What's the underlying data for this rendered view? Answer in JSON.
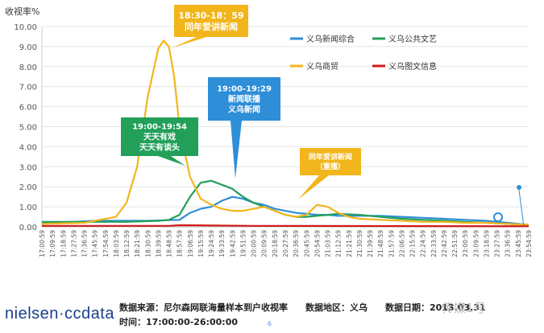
{
  "chart_data": {
    "type": "line",
    "ylabel": "收视率%",
    "ylim": [
      0,
      10
    ],
    "yticks": [
      "0.00",
      "1.00",
      "2.00",
      "3.00",
      "4.00",
      "5.00",
      "6.00",
      "7.00",
      "8.00",
      "9.00",
      "10.00"
    ],
    "x_tick_labels": [
      "17:00:59",
      "17:09:59",
      "17:18:59",
      "17:27:59",
      "17:36:59",
      "17:45:59",
      "17:54:59",
      "18:03:59",
      "18:12:59",
      "18:21:59",
      "18:30:59",
      "18:39:59",
      "18:48:59",
      "18:57:59",
      "19:06:59",
      "19:15:59",
      "19:24:59",
      "19:33:59",
      "19:42:59",
      "19:51:59",
      "20:00:59",
      "20:09:59",
      "20:18:59",
      "20:27:59",
      "20:36:59",
      "20:45:59",
      "20:54:59",
      "21:03:59",
      "21:12:59",
      "21:21:59",
      "21:30:59",
      "21:39:59",
      "21:48:59",
      "21:57:59",
      "22:06:59",
      "22:15:59",
      "22:24:59",
      "22:33:59",
      "22:42:59",
      "22:51:59",
      "23:00:59",
      "23:09:59",
      "23:18:59",
      "23:27:59",
      "23:36:59",
      "23:45:59",
      "23:54:59"
    ],
    "legend_placement": "top-right",
    "series": [
      {
        "name": "义乌新闻综合",
        "color": "#2e8ed8",
        "x": [
          0,
          3,
          5,
          8,
          10,
          13,
          14,
          15,
          16,
          17,
          18,
          19,
          20,
          21,
          22,
          23,
          24,
          25,
          26,
          27,
          28,
          30,
          32,
          34,
          36,
          38,
          40,
          42,
          43,
          44,
          45,
          46
        ],
        "values": [
          0.2,
          0.25,
          0.3,
          0.3,
          0.3,
          0.35,
          0.7,
          0.9,
          1.0,
          1.3,
          1.5,
          1.4,
          1.2,
          1.1,
          0.9,
          0.8,
          0.7,
          0.65,
          0.6,
          0.6,
          0.55,
          0.55,
          0.55,
          0.5,
          0.45,
          0.4,
          0.35,
          0.3,
          0.25,
          0.2,
          0.15,
          0.1
        ]
      },
      {
        "name": "义乌公共文艺",
        "color": "#22a05a",
        "x": [
          0,
          4,
          8,
          11,
          12,
          13,
          14,
          15,
          16,
          17,
          18,
          19,
          20,
          21,
          22,
          23,
          24,
          25,
          26,
          27,
          28,
          30,
          32,
          34,
          36,
          38,
          40,
          42,
          44,
          46
        ],
        "values": [
          0.25,
          0.25,
          0.25,
          0.3,
          0.35,
          0.6,
          1.5,
          2.2,
          2.3,
          2.1,
          1.9,
          1.5,
          1.2,
          1.0,
          0.8,
          0.6,
          0.5,
          0.5,
          0.55,
          0.6,
          0.65,
          0.6,
          0.5,
          0.4,
          0.35,
          0.3,
          0.25,
          0.2,
          0.15,
          0.1
        ]
      },
      {
        "name": "义乌商贸",
        "color": "#f2b51c",
        "x": [
          0,
          4,
          7,
          8,
          9,
          10,
          11,
          11.5,
          12,
          12.5,
          13,
          14,
          15,
          16,
          17,
          18,
          19,
          20,
          21,
          22,
          23,
          24,
          25,
          26,
          27,
          28,
          29,
          30,
          32,
          34,
          36,
          38,
          40,
          42,
          44,
          46
        ],
        "values": [
          0.15,
          0.2,
          0.5,
          1.2,
          3.0,
          6.5,
          8.9,
          9.3,
          9.0,
          7.5,
          5.0,
          2.5,
          1.4,
          1.1,
          0.9,
          0.8,
          0.8,
          0.9,
          1.0,
          0.8,
          0.6,
          0.5,
          0.6,
          1.1,
          1.0,
          0.7,
          0.5,
          0.4,
          0.35,
          0.3,
          0.25,
          0.25,
          0.2,
          0.2,
          0.15,
          0.1
        ]
      },
      {
        "name": "义乌图文信息",
        "color": "#d11a1a",
        "x": [
          0,
          12,
          13,
          20,
          30,
          46
        ],
        "values": [
          0.05,
          0.05,
          0.08,
          0.05,
          0.04,
          0.03
        ]
      }
    ],
    "annotations": [
      {
        "title": "18:30-18：59",
        "text": "同年爱讲新闻",
        "color": "#f2b51c"
      },
      {
        "title": "19:00-19:54",
        "text": "天天有戏\n天天有谈头",
        "color": "#22a05a"
      },
      {
        "title": "19:00-19:29",
        "text": "新闻联播\n义乌新闻",
        "color": "#2e8ed8"
      },
      {
        "title": "",
        "text": "同年爱讲新闻\n（重播）",
        "color": "#f2b51c"
      }
    ]
  },
  "footer": {
    "logo": "nielsen·ccdata",
    "source": "数据来源：尼尔森网联海量样本到户收视率　　数据地区：义乌　　数据日期：",
    "date_partial": "2013.03.31",
    "time_range": "时间：17:00:00-26:00:00",
    "page_no": "6",
    "watermark": "传媒1号"
  }
}
